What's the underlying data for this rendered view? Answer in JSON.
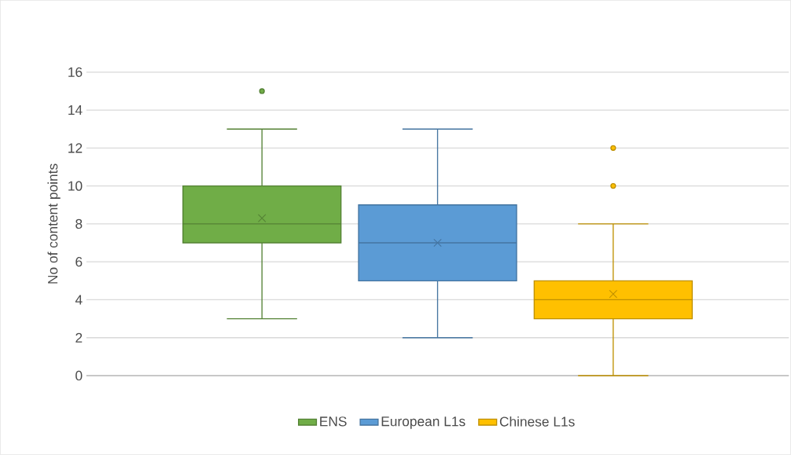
{
  "chart_data": {
    "type": "box",
    "categories": [
      null
    ],
    "ylabel": "No of content points",
    "series": [
      {
        "name": "ENS",
        "color": "#70ad47",
        "boxes": [
          {
            "low": 3,
            "q1": 7,
            "median": 8,
            "q3": 10,
            "high": 13,
            "mean": 8.3,
            "outliers": [
              15
            ]
          }
        ]
      },
      {
        "name": "European L1s",
        "color": "#5b9bd5",
        "boxes": [
          {
            "low": 2,
            "q1": 5,
            "median": 7,
            "q3": 9,
            "high": 13,
            "mean": 7.0
          }
        ]
      },
      {
        "name": "Chinese L1s",
        "color": "#ffc000",
        "boxes": [
          {
            "low": 0,
            "q1": 3,
            "median": 4,
            "q3": 5,
            "high": 8,
            "mean": 4.3,
            "outliers": [
              10,
              12
            ]
          }
        ]
      }
    ],
    "ylim": [
      0,
      16
    ],
    "yticks": [
      0,
      2,
      4,
      6,
      8,
      10,
      12,
      14,
      16
    ],
    "grid": "y",
    "legend": "bottom"
  }
}
